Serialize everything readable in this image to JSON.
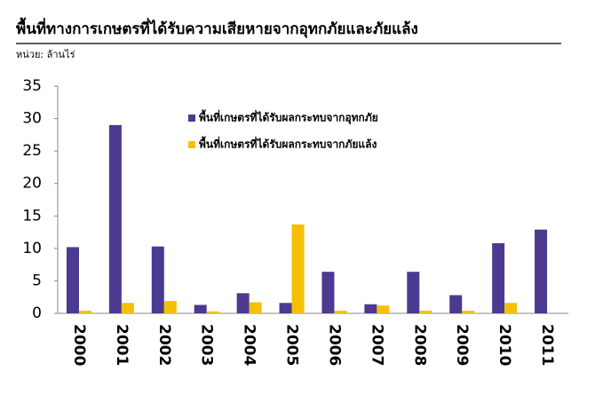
{
  "chart_data": {
    "type": "bar",
    "title": "พื้นที่ทางการเกษตรที่ได้รับความเสียหายจากอุทกภัยและภัยแล้ง",
    "subtitle": "หน่วย: ล้านไร่",
    "categories": [
      "2000",
      "2001",
      "2002",
      "2003",
      "2004",
      "2005",
      "2006",
      "2007",
      "2008",
      "2009",
      "2010",
      "2011"
    ],
    "series": [
      {
        "name": "พื้นที่เกษตรที่ได้รับผลกระทบจากอุทกภัย",
        "color": "#4b3a8f",
        "values": [
          10.2,
          29,
          10.3,
          1.3,
          3.1,
          1.6,
          6.4,
          1.4,
          6.4,
          2.8,
          10.8,
          12.9
        ]
      },
      {
        "name": "พื้นที่เกษตรที่ได้รับผลกระทบจากภัยแล้ง",
        "color": "#f5c000",
        "values": [
          0.4,
          1.6,
          1.9,
          0.3,
          1.7,
          13.7,
          0.4,
          1.2,
          0.4,
          0.4,
          1.6,
          null
        ]
      }
    ],
    "ylim": [
      0,
      35
    ],
    "yticks": [
      0,
      5,
      10,
      15,
      20,
      25,
      30,
      35
    ]
  }
}
